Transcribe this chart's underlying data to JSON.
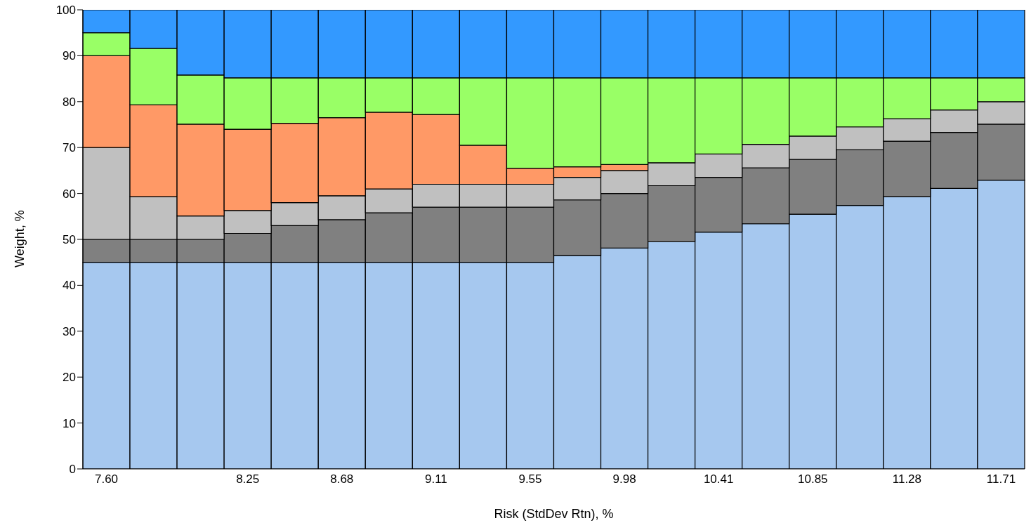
{
  "chart_data": {
    "type": "bar",
    "stacked": true,
    "xlabel": "Risk (StdDev Rtn), %",
    "ylabel": "Weight, %",
    "categories": [
      "7.60",
      null,
      null,
      "8.25",
      null,
      "8.68",
      null,
      "9.11",
      null,
      "9.55",
      null,
      "9.98",
      null,
      "10.41",
      null,
      "10.85",
      null,
      "11.28",
      null,
      "11.71"
    ],
    "ylim": [
      0,
      100
    ],
    "yticks": [
      0,
      10,
      20,
      30,
      40,
      50,
      60,
      70,
      80,
      90,
      100
    ],
    "grid": false,
    "legend": false,
    "series": [
      {
        "color": "#a6c8ef",
        "values": [
          45,
          45,
          45,
          45,
          45,
          45,
          45,
          45,
          45,
          45,
          46.5,
          48.1,
          49.5,
          51.6,
          53.4,
          55.5,
          57.4,
          59.3,
          61.1,
          62.9
        ]
      },
      {
        "color": "#808080",
        "values": [
          5,
          5,
          5,
          6.3,
          8,
          9.3,
          10.8,
          12,
          12,
          12,
          12.1,
          11.9,
          12.2,
          11.9,
          12.2,
          11.9,
          12.1,
          12.1,
          12.2,
          12.2
        ]
      },
      {
        "color": "#c0c0c0",
        "values": [
          20,
          9.3,
          5.1,
          5,
          5,
          5.2,
          5.2,
          5,
          5,
          5,
          4.9,
          5,
          5,
          5.1,
          5.1,
          5.1,
          5,
          4.9,
          4.9,
          4.9
        ]
      },
      {
        "color": "#ff9966",
        "values": [
          20,
          20,
          20,
          17.7,
          17.3,
          17,
          16.7,
          15.2,
          8.5,
          3.5,
          2.3,
          1.3,
          0,
          0,
          0,
          0,
          0,
          0,
          0,
          0
        ]
      },
      {
        "color": "#99ff66",
        "values": [
          5,
          12.3,
          10.7,
          11.2,
          9.9,
          8.7,
          7.5,
          8,
          14.7,
          19.7,
          19.4,
          18.9,
          18.5,
          16.6,
          14.5,
          12.7,
          10.7,
          8.9,
          7,
          5.2
        ]
      },
      {
        "color": "#3399ff",
        "values": [
          5,
          8.4,
          14.2,
          14.8,
          14.8,
          14.8,
          14.8,
          14.8,
          14.8,
          14.8,
          14.8,
          14.8,
          14.8,
          14.8,
          14.8,
          14.8,
          14.8,
          14.8,
          14.8,
          14.8
        ]
      }
    ]
  }
}
